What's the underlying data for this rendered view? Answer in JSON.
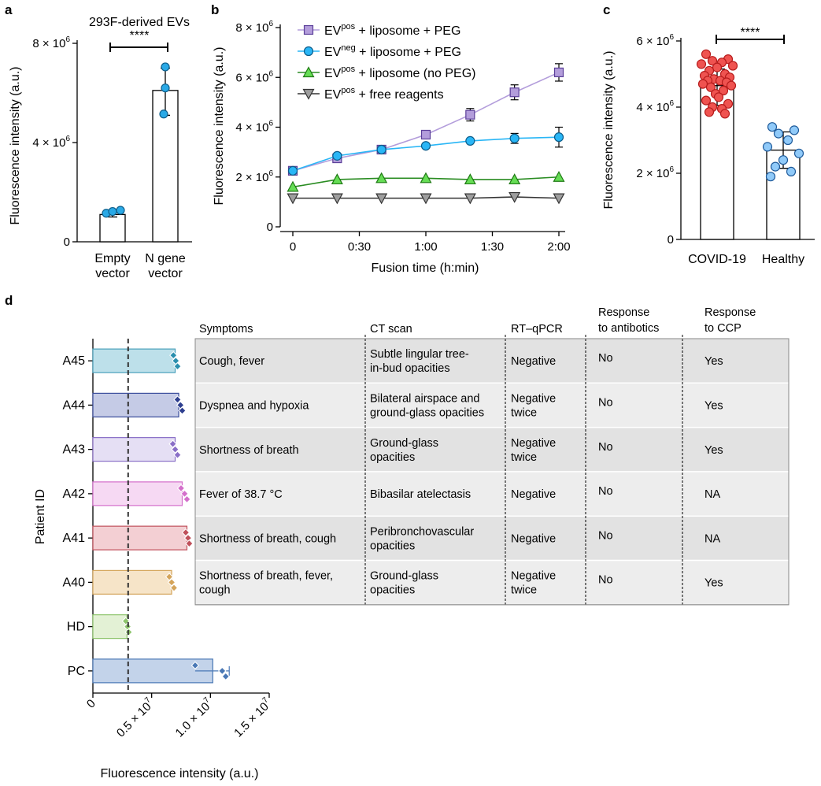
{
  "panels": {
    "a": {
      "label": "a",
      "title": "293F-derived EVs",
      "ylabel": "Fluorescence intensity (a.u.)",
      "yticks": [
        {
          "v": 0,
          "m": "0",
          "e": ""
        },
        {
          "v": 4000000,
          "m": "4 × 10",
          "e": "6"
        },
        {
          "v": 8000000,
          "m": "8 × 10",
          "e": "6"
        }
      ],
      "ylim": [
        0,
        8000000
      ],
      "categories": [
        {
          "lines": [
            "Empty",
            "vector"
          ]
        },
        {
          "lines": [
            "N gene",
            "vector"
          ]
        }
      ],
      "bars": [
        1100000,
        6100000
      ],
      "errors": [
        [
          1000000,
          1250000
        ],
        [
          5100000,
          7000000
        ]
      ],
      "points": [
        [
          1150000,
          1220000,
          1270000
        ],
        [
          5150000,
          6200000,
          7050000
        ]
      ],
      "significance": "****",
      "point_color": "#2aa9e6"
    },
    "b": {
      "label": "b",
      "xlabel": "Fusion time (h:min)",
      "ylabel": "Fluorescence intensity (a.u.)",
      "xticks": [
        "0",
        "0:30",
        "1:00",
        "1:30",
        "2:00"
      ],
      "xlim": [
        0,
        120
      ],
      "yticks": [
        {
          "v": 0,
          "m": "0",
          "e": ""
        },
        {
          "v": 2000000,
          "m": "2 × 10",
          "e": "6"
        },
        {
          "v": 4000000,
          "m": "4 × 10",
          "e": "6"
        },
        {
          "v": 6000000,
          "m": "6 × 10",
          "e": "6"
        },
        {
          "v": 8000000,
          "m": "8 × 10",
          "e": "6"
        }
      ],
      "ylim": [
        0,
        8000000
      ],
      "x": [
        0,
        20,
        40,
        60,
        80,
        100,
        120
      ],
      "series": [
        {
          "name_pre": "EV",
          "name_sup": "pos",
          "name_post": " + liposome + PEG",
          "color": "#b39ddb",
          "stroke": "#5b3f99",
          "line": "#b39ddb",
          "marker": "square",
          "values": [
            2250000,
            2750000,
            3100000,
            3700000,
            4500000,
            5400000,
            6200000
          ],
          "err": [
            100000,
            100000,
            100000,
            180000,
            250000,
            300000,
            350000
          ]
        },
        {
          "name_pre": "EV",
          "name_sup": "neg",
          "name_post": " + liposome + PEG",
          "color": "#29b6f6",
          "stroke": "#0b5c8a",
          "line": "#29b6f6",
          "marker": "circle",
          "values": [
            2250000,
            2850000,
            3100000,
            3250000,
            3450000,
            3550000,
            3600000
          ],
          "err": [
            80000,
            80000,
            100000,
            150000,
            100000,
            200000,
            400000
          ]
        },
        {
          "name_pre": "EV",
          "name_sup": "pos",
          "name_post": " + liposome (no PEG)",
          "color": "#66dd55",
          "stroke": "#1f7a14",
          "line": "#2a8c22",
          "marker": "triangle",
          "values": [
            1600000,
            1900000,
            1950000,
            1950000,
            1900000,
            1900000,
            2000000
          ],
          "err": [
            60000,
            60000,
            60000,
            60000,
            60000,
            60000,
            60000
          ]
        },
        {
          "name_pre": "EV",
          "name_sup": "pos",
          "name_post": " + free reagents",
          "color": "#9e9e9e",
          "stroke": "#333333",
          "line": "#333333",
          "marker": "triangle-down",
          "values": [
            1150000,
            1150000,
            1150000,
            1150000,
            1150000,
            1200000,
            1150000
          ],
          "err": [
            80000,
            50000,
            50000,
            50000,
            50000,
            80000,
            150000
          ]
        }
      ]
    },
    "c": {
      "label": "c",
      "ylabel": "Fluorescence intensity (a.u.)",
      "yticks": [
        {
          "v": 0,
          "m": "0",
          "e": ""
        },
        {
          "v": 2000000,
          "m": "2 × 10",
          "e": "6"
        },
        {
          "v": 4000000,
          "m": "4 × 10",
          "e": "6"
        },
        {
          "v": 6000000,
          "m": "6 × 10",
          "e": "6"
        }
      ],
      "ylim": [
        0,
        6000000
      ],
      "categories": [
        "COVID-19",
        "Healthy"
      ],
      "bars": [
        4650000,
        2700000
      ],
      "errors": [
        [
          4050000,
          5150000
        ],
        [
          2150000,
          3250000
        ]
      ],
      "significance": "****",
      "point_colors": [
        "#ef5350",
        "#90caf9"
      ],
      "point_strokes": [
        "#b71c1c",
        "#1e5a9a"
      ],
      "points": [
        [
          5600000,
          5450000,
          5400000,
          5350000,
          5300000,
          5250000,
          5200000,
          5100000,
          5000000,
          4950000,
          4900000,
          4850000,
          4800000,
          4800000,
          4750000,
          4700000,
          4650000,
          4600000,
          4500000,
          4400000,
          4300000,
          4200000,
          4100000,
          4000000,
          3950000,
          3850000,
          3800000
        ],
        [
          3400000,
          3300000,
          3200000,
          3000000,
          2800000,
          2600000,
          2400000,
          2200000,
          2050000,
          1900000
        ]
      ]
    },
    "d": {
      "label": "d",
      "ylabel": "Patient ID",
      "xlabel": "Fluorescence intensity (a.u.)",
      "xticks": [
        {
          "v": 0,
          "m": "0",
          "e": ""
        },
        {
          "v": 5000000,
          "m": "0.5 × 10",
          "e": "7"
        },
        {
          "v": 10000000,
          "m": "1.0 × 10",
          "e": "7"
        },
        {
          "v": 15000000,
          "m": "1.5 × 10",
          "e": "7"
        }
      ],
      "xlim": [
        0,
        15000000
      ],
      "threshold": 3000000,
      "rows": [
        {
          "id": "A45",
          "value": 7000000,
          "fill": "#bde0ea",
          "stroke": "#4aa0bb",
          "point": "#2a8fae",
          "pts": [
            6850000,
            7050000,
            7200000
          ]
        },
        {
          "id": "A44",
          "value": 7300000,
          "fill": "#c5cbe6",
          "stroke": "#3a4d9c",
          "point": "#2e3f8f",
          "pts": [
            7200000,
            7450000,
            7600000
          ]
        },
        {
          "id": "A43",
          "value": 7000000,
          "fill": "#e5dff4",
          "stroke": "#8a6fc7",
          "point": "#8a6fc7",
          "pts": [
            6800000,
            7000000,
            7200000
          ]
        },
        {
          "id": "A42",
          "value": 7600000,
          "fill": "#f6d9f3",
          "stroke": "#d46fcb",
          "point": "#d46fcb",
          "pts": [
            7500000,
            7800000,
            8000000
          ]
        },
        {
          "id": "A41",
          "value": 8000000,
          "fill": "#f3cfd3",
          "stroke": "#c0505b",
          "point": "#c0505b",
          "pts": [
            7900000,
            8100000,
            8200000
          ]
        },
        {
          "id": "A40",
          "value": 6700000,
          "fill": "#f6e4c8",
          "stroke": "#d4a45a",
          "point": "#d4a45a",
          "pts": [
            6500000,
            6700000,
            6900000
          ]
        },
        {
          "id": "HD",
          "value": 2900000,
          "fill": "#e3f1d5",
          "stroke": "#8cc46a",
          "point": "#8cc46a",
          "pts": [
            2800000,
            2950000,
            3050000
          ]
        },
        {
          "id": "PC",
          "value": 10200000,
          "fill": "#c3d3ea",
          "stroke": "#4a78b5",
          "point": "#4a78b5",
          "pts": [
            8700000,
            11000000,
            11300000
          ],
          "err": [
            8700000,
            11600000
          ]
        }
      ],
      "table": {
        "headers": [
          [
            "Symptoms"
          ],
          [
            "CT scan"
          ],
          [
            "RT–qPCR"
          ],
          [
            "Response",
            "to antibotics"
          ],
          [
            "Response",
            "to CCP"
          ]
        ],
        "rows": [
          [
            [
              "Cough, fever"
            ],
            [
              "Subtle lingular tree-",
              "in-bud opacities"
            ],
            [
              "Negative"
            ],
            [
              "No"
            ],
            [
              "Yes"
            ]
          ],
          [
            [
              "Dyspnea and hypoxia"
            ],
            [
              "Bilateral airspace and",
              "ground-glass opacities"
            ],
            [
              "Negative",
              "twice"
            ],
            [
              "No"
            ],
            [
              "Yes"
            ]
          ],
          [
            [
              "Shortness of breath"
            ],
            [
              "Ground-glass",
              "opacities"
            ],
            [
              "Negative",
              "twice"
            ],
            [
              "No"
            ],
            [
              "Yes"
            ]
          ],
          [
            [
              "Fever of 38.7 °C"
            ],
            [
              "Bibasilar atelectasis"
            ],
            [
              "Negative"
            ],
            [
              "No"
            ],
            [
              "NA"
            ]
          ],
          [
            [
              "Shortness of breath, cough"
            ],
            [
              "Peribronchovascular",
              "opacities"
            ],
            [
              "Negative"
            ],
            [
              "No"
            ],
            [
              "NA"
            ]
          ],
          [
            [
              "Shortness of breath, fever,",
              "cough"
            ],
            [
              "Ground-glass",
              "opacities"
            ],
            [
              "Negative",
              "twice"
            ],
            [
              "No"
            ],
            [
              "Yes"
            ]
          ]
        ]
      }
    }
  },
  "chart_data": [
    {
      "panel": "a",
      "type": "bar",
      "title": "293F-derived EVs",
      "categories": [
        "Empty vector",
        "N gene vector"
      ],
      "values": [
        1100000,
        6100000
      ],
      "ylabel": "Fluorescence intensity (a.u.)",
      "ylim": [
        0,
        8000000
      ]
    },
    {
      "panel": "b",
      "type": "line",
      "x": [
        "0:00",
        "0:20",
        "0:40",
        "1:00",
        "1:20",
        "1:40",
        "2:00"
      ],
      "xlabel": "Fusion time (h:min)",
      "ylabel": "Fluorescence intensity (a.u.)",
      "ylim": [
        0,
        8000000
      ],
      "series": [
        {
          "name": "EVpos + liposome + PEG",
          "values": [
            2250000,
            2750000,
            3100000,
            3700000,
            4500000,
            5400000,
            6200000
          ]
        },
        {
          "name": "EVneg + liposome + PEG",
          "values": [
            2250000,
            2850000,
            3100000,
            3250000,
            3450000,
            3550000,
            3600000
          ]
        },
        {
          "name": "EVpos + liposome (no PEG)",
          "values": [
            1600000,
            1900000,
            1950000,
            1950000,
            1900000,
            1900000,
            2000000
          ]
        },
        {
          "name": "EVpos + free reagents",
          "values": [
            1150000,
            1150000,
            1150000,
            1150000,
            1150000,
            1200000,
            1150000
          ]
        }
      ]
    },
    {
      "panel": "c",
      "type": "bar",
      "categories": [
        "COVID-19",
        "Healthy"
      ],
      "values": [
        4650000,
        2700000
      ],
      "ylabel": "Fluorescence intensity (a.u.)",
      "ylim": [
        0,
        6000000
      ]
    },
    {
      "panel": "d",
      "type": "bar",
      "orientation": "horizontal",
      "categories": [
        "A45",
        "A44",
        "A43",
        "A42",
        "A41",
        "A40",
        "HD",
        "PC"
      ],
      "values": [
        7000000,
        7300000,
        7000000,
        7600000,
        8000000,
        6700000,
        2900000,
        10200000
      ],
      "xlabel": "Fluorescence intensity (a.u.)",
      "ylabel": "Patient ID",
      "xlim": [
        0,
        15000000
      ]
    }
  ]
}
